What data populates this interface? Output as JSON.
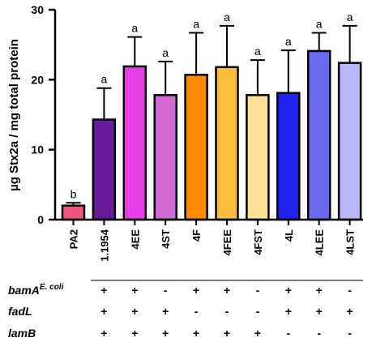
{
  "chart_data": {
    "type": "bar",
    "ylabel": "µg Stx2a / mg total protein",
    "ylim": [
      0,
      30
    ],
    "yticks": [
      0,
      10,
      20,
      30
    ],
    "grid": false,
    "categories": [
      "PA2",
      "1.1954",
      "4EE",
      "4ST",
      "4F",
      "4FEE",
      "4FST",
      "4L",
      "4LEE",
      "4LST"
    ],
    "values": [
      2.0,
      14.3,
      21.9,
      17.8,
      20.7,
      21.8,
      17.8,
      18.1,
      24.1,
      22.4
    ],
    "errors": [
      0.4,
      4.5,
      4.2,
      4.8,
      6.0,
      5.9,
      5.0,
      6.1,
      2.6,
      5.3
    ],
    "colors": [
      "#f0557d",
      "#6a1b9a",
      "#e83ee8",
      "#d46ad4",
      "#ff8a00",
      "#fbbd3d",
      "#fddf95",
      "#2222ee",
      "#6a6aee",
      "#b8b8f8"
    ],
    "significance": [
      "b",
      "a",
      "a",
      "a",
      "a",
      "a",
      "a",
      "a",
      "a",
      "a"
    ]
  },
  "genotype_table": {
    "rows": [
      {
        "label": "bamA",
        "superscript": "E. coli",
        "signs": [
          "+",
          "+",
          "-",
          "+",
          "+",
          "-",
          "+",
          "+",
          "-"
        ]
      },
      {
        "label": "fadL",
        "superscript": "",
        "signs": [
          "+",
          "+",
          "+",
          "-",
          "-",
          "-",
          "+",
          "+",
          "+"
        ]
      },
      {
        "label": "lamB",
        "superscript": "",
        "signs": [
          "+",
          "+",
          "+",
          "+",
          "+",
          "+",
          "-",
          "-",
          "-"
        ]
      }
    ]
  }
}
